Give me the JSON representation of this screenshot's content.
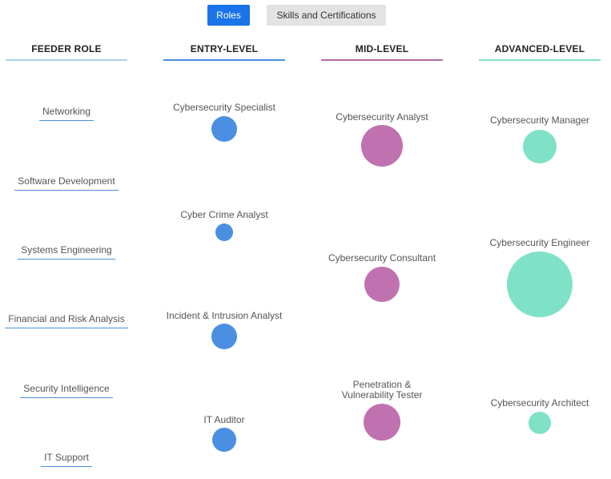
{
  "tabs": {
    "roles": "Roles",
    "skills": "Skills and Certifications"
  },
  "columns": {
    "feeder": "FEEDER ROLE",
    "entry": "ENTRY-LEVEL",
    "mid": "MID-LEVEL",
    "advanced": "ADVANCED-LEVEL"
  },
  "colors": {
    "feeder": "#a8d4e6",
    "entry": "#4a8fe2",
    "mid": "#c071b0",
    "advanced": "#7fe1c6"
  },
  "feeder_roles": [
    "Networking",
    "Software Development",
    "Systems Engineering",
    "Financial and Risk Analysis",
    "Security Intelligence",
    "IT Support"
  ],
  "entry_roles": [
    "Cybersecurity Specialist",
    "Cyber Crime Analyst",
    "Incident & Intrusion Analyst",
    "IT Auditor"
  ],
  "mid_roles": [
    "Cybersecurity Analyst",
    "Cybersecurity Consultant",
    "Penetration & Vulnerability Tester"
  ],
  "advanced_roles": [
    "Cybersecurity Manager",
    "Cybersecurity Engineer",
    "Cybersecurity Architect"
  ]
}
